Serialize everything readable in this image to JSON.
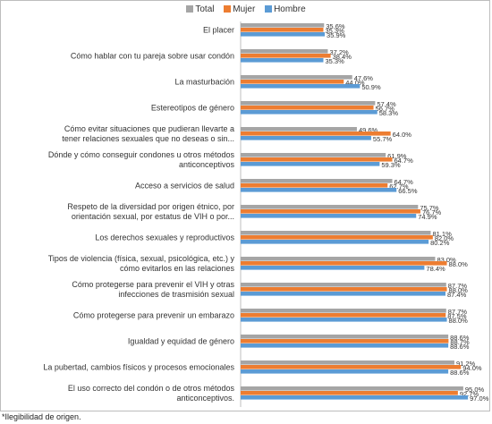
{
  "chart_data": {
    "type": "bar",
    "orientation": "horizontal",
    "xlim": [
      0,
      100
    ],
    "series": [
      {
        "name": "Total",
        "color": "#a5a5a5",
        "values": [
          35.6,
          37.2,
          47.6,
          57.4,
          49.6,
          61.9,
          64.7,
          75.7,
          81.1,
          83.0,
          87.7,
          87.7,
          88.6,
          91.2,
          95.0
        ]
      },
      {
        "name": "Mujer",
        "color": "#ed7d31",
        "values": [
          35.3,
          38.4,
          44.0,
          56.7,
          64.0,
          64.7,
          62.7,
          76.7,
          82.0,
          88.0,
          88.0,
          87.5,
          88.7,
          94.0,
          92.7
        ]
      },
      {
        "name": "Hombre",
        "color": "#5b9bd5",
        "values": [
          35.9,
          35.3,
          50.9,
          58.3,
          55.7,
          59.3,
          66.5,
          74.9,
          80.2,
          78.4,
          87.4,
          88.0,
          88.6,
          88.6,
          97.0
        ]
      }
    ],
    "categories": [
      [
        "El placer"
      ],
      [
        "Cómo hablar con tu pareja sobre usar condón"
      ],
      [
        "La masturbación"
      ],
      [
        "Estereotipos de género"
      ],
      [
        "Cómo evitar situaciones que pudieran llevarte a",
        "tener relaciones sexuales que no deseas o sin..."
      ],
      [
        "Dónde y cómo conseguir condones u otros métodos",
        "anticonceptivos"
      ],
      [
        "Acceso a servicios de salud"
      ],
      [
        "Respeto de la diversidad por origen étnico, por",
        "orientación sexual, por estatus de VIH o por..."
      ],
      [
        "Los derechos sexuales y reproductivos"
      ],
      [
        "Tipos de violencia (física, sexual, psicológica, etc.) y",
        "cómo evitarlos en las relaciones"
      ],
      [
        "Cómo protegerse para prevenir el VIH y otras",
        "infecciones de trasmisión sexual"
      ],
      [
        "Cómo protegerse para prevenir un embarazo"
      ],
      [
        "Igualdad y equidad de género"
      ],
      [
        "La pubertad, cambios físicos y procesos emocionales"
      ],
      [
        "El uso correcto del condón o de otros métodos",
        "anticonceptivos."
      ]
    ]
  },
  "footnote": "*Ilegibilidad de origen."
}
